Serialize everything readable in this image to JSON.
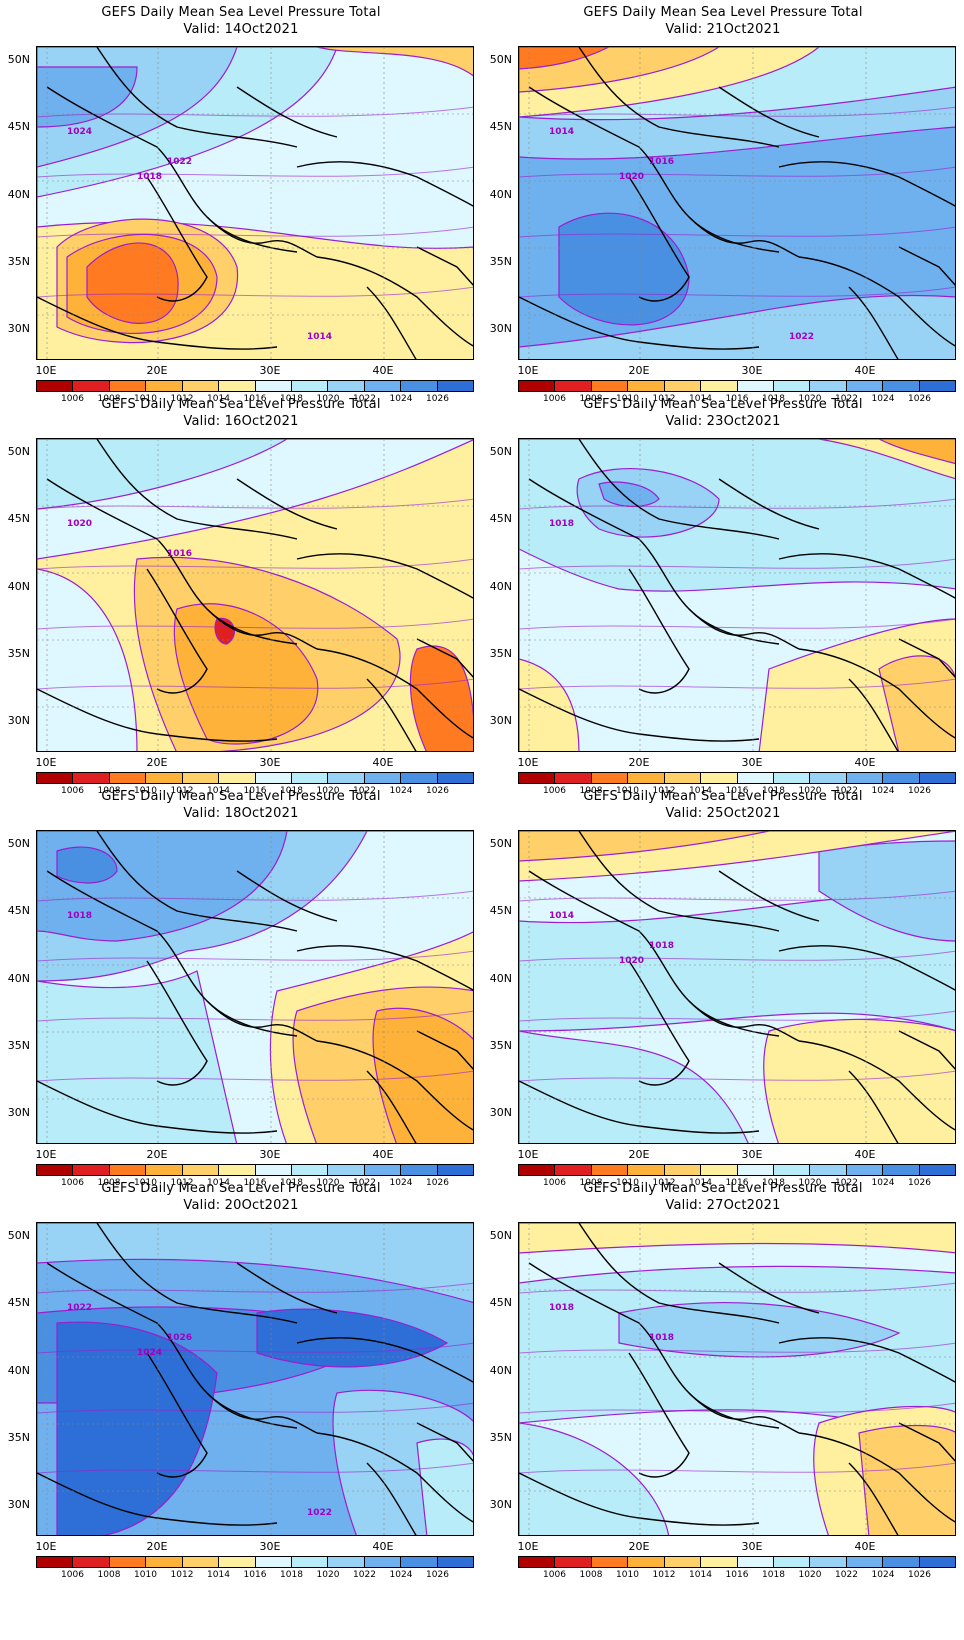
{
  "figure": {
    "title_prefix": "GEFS Daily Mean Sea Level Pressure Total",
    "lat_labels": [
      "50N",
      "45N",
      "40N",
      "35N",
      "30N"
    ],
    "lon_labels": [
      "10E",
      "20E",
      "30E",
      "40E"
    ],
    "colorbar": {
      "labels": [
        "1006",
        "1008",
        "1010",
        "1012",
        "1014",
        "1016",
        "1018",
        "1020",
        "1022",
        "1024",
        "1026"
      ],
      "colors": [
        "#b00000",
        "#e02020",
        "#ff7a20",
        "#ffb23a",
        "#ffd06a",
        "#fff0a0",
        "#dff7ff",
        "#b7ecf8",
        "#98d3f5",
        "#6fb0ee",
        "#4a90e2",
        "#2d6fd6"
      ]
    }
  },
  "panels": [
    {
      "valid": "Valid: 14Oct2021",
      "regime": "high_north_low_south",
      "contour_labels": [
        "1024",
        "1022",
        "1018",
        "1014"
      ]
    },
    {
      "valid": "Valid: 21Oct2021",
      "regime": "high_south",
      "contour_labels": [
        "1014",
        "1016",
        "1020",
        "1022"
      ]
    },
    {
      "valid": "Valid: 16Oct2021",
      "regime": "low_center",
      "contour_labels": [
        "1020",
        "1016"
      ]
    },
    {
      "valid": "Valid: 23Oct2021",
      "regime": "neutral",
      "contour_labels": [
        "1018"
      ]
    },
    {
      "valid": "Valid: 18Oct2021",
      "regime": "high_west",
      "contour_labels": [
        "1018"
      ]
    },
    {
      "valid": "Valid: 25Oct2021",
      "regime": "neutral_high",
      "contour_labels": [
        "1014",
        "1018",
        "1020"
      ]
    },
    {
      "valid": "Valid: 20Oct2021",
      "regime": "high_all",
      "contour_labels": [
        "1022",
        "1026",
        "1024",
        "1022"
      ]
    },
    {
      "valid": "Valid: 27Oct2021",
      "regime": "neutral2",
      "contour_labels": [
        "1018",
        "1018"
      ]
    }
  ]
}
